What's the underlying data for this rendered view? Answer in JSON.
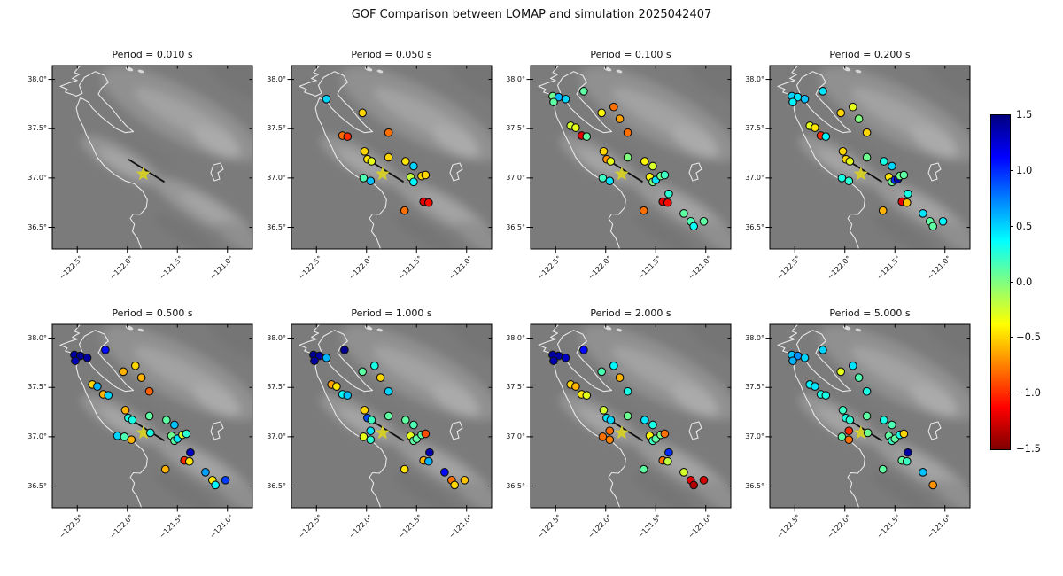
{
  "figure": {
    "title": "GOF Comparison between LOMAP and simulation 2025042407"
  },
  "chart_data": {
    "type": "scatter",
    "subtype": "map-scatter-grid",
    "title": "GOF Comparison between LOMAP and simulation 2025042407",
    "colormap": "jet_r",
    "grid": {
      "rows": 2,
      "cols": 4
    },
    "map_extent": {
      "lon_min": -122.75,
      "lon_max": -120.75,
      "lat_min": 36.28,
      "lat_max": 38.14
    },
    "x_tick_labels": [
      "−122.5°",
      "−122.0°",
      "−121.5°",
      "−121.0°"
    ],
    "x_tick_values": [
      -122.5,
      -122.0,
      -121.5,
      -121.0
    ],
    "y_tick_labels": [
      "38.0°",
      "37.5°",
      "37.0°",
      "36.5°"
    ],
    "y_tick_values": [
      38.0,
      37.5,
      37.0,
      36.5
    ],
    "colorbar": {
      "min": -1.5,
      "max": 1.5,
      "tick_values": [
        1.5,
        1.0,
        0.5,
        0.0,
        -0.5,
        -1.0,
        -1.5
      ],
      "tick_labels": [
        "1.5",
        "1.0",
        "0.5",
        "0.0",
        "−0.5",
        "−1.0",
        "−1.5"
      ]
    },
    "epicenter": {
      "lon": -121.84,
      "lat": 37.04,
      "marker": "star",
      "color": "#d3cd2b"
    },
    "fault_trace": [
      [
        -121.99,
        37.19
      ],
      [
        -121.63,
        36.96
      ]
    ],
    "stations": [
      {
        "id": "SF1",
        "lon": -122.53,
        "lat": 37.83
      },
      {
        "id": "SF2",
        "lon": -122.47,
        "lat": 37.82
      },
      {
        "id": "SF3",
        "lon": -122.4,
        "lat": 37.8
      },
      {
        "id": "SF4",
        "lon": -122.52,
        "lat": 37.77
      },
      {
        "id": "NTH",
        "lon": -122.22,
        "lat": 37.88
      },
      {
        "id": "S06",
        "lon": -121.92,
        "lat": 37.72
      },
      {
        "id": "S07",
        "lon": -122.04,
        "lat": 37.66
      },
      {
        "id": "S08",
        "lon": -121.86,
        "lat": 37.6
      },
      {
        "id": "S09",
        "lon": -122.35,
        "lat": 37.53
      },
      {
        "id": "S10",
        "lon": -122.3,
        "lat": 37.51
      },
      {
        "id": "S11",
        "lon": -122.24,
        "lat": 37.43
      },
      {
        "id": "S12",
        "lon": -122.19,
        "lat": 37.42
      },
      {
        "id": "S13",
        "lon": -121.78,
        "lat": 37.46
      },
      {
        "id": "S15",
        "lon": -122.02,
        "lat": 37.27
      },
      {
        "id": "S16",
        "lon": -121.99,
        "lat": 37.19
      },
      {
        "id": "S17",
        "lon": -121.95,
        "lat": 37.17
      },
      {
        "id": "S18",
        "lon": -121.78,
        "lat": 37.21
      },
      {
        "id": "S19",
        "lon": -121.61,
        "lat": 37.17
      },
      {
        "id": "S20",
        "lon": -121.53,
        "lat": 37.12
      },
      {
        "id": "SW2",
        "lon": -122.1,
        "lat": 37.01
      },
      {
        "id": "S21",
        "lon": -122.03,
        "lat": 37.0
      },
      {
        "id": "S22",
        "lon": -121.96,
        "lat": 36.97
      },
      {
        "id": "SNW",
        "lon": -121.96,
        "lat": 37.06
      },
      {
        "id": "SNE",
        "lon": -121.77,
        "lat": 37.04
      },
      {
        "id": "C1",
        "lon": -121.56,
        "lat": 37.01
      },
      {
        "id": "C2",
        "lon": -121.53,
        "lat": 36.96
      },
      {
        "id": "C3",
        "lon": -121.5,
        "lat": 36.98
      },
      {
        "id": "C4",
        "lon": -121.47,
        "lat": 36.99
      },
      {
        "id": "C5",
        "lon": -121.45,
        "lat": 37.02
      },
      {
        "id": "C6",
        "lon": -121.41,
        "lat": 37.03
      },
      {
        "id": "S28",
        "lon": -121.37,
        "lat": 36.84
      },
      {
        "id": "S29",
        "lon": -121.43,
        "lat": 36.76
      },
      {
        "id": "S30",
        "lon": -121.38,
        "lat": 36.75
      },
      {
        "id": "S31",
        "lon": -121.62,
        "lat": 36.67
      },
      {
        "id": "S32",
        "lon": -121.22,
        "lat": 36.64
      },
      {
        "id": "S33",
        "lon": -121.15,
        "lat": 36.56
      },
      {
        "id": "S34",
        "lon": -121.12,
        "lat": 36.51
      },
      {
        "id": "S35",
        "lon": -121.02,
        "lat": 36.56
      }
    ],
    "panels": [
      {
        "title": "Period = 0.010 s",
        "period_s": 0.01,
        "values": {}
      },
      {
        "title": "Period = 0.050 s",
        "period_s": 0.05,
        "values": {
          "SF3": 0.5,
          "S07": -0.5,
          "S11": -0.8,
          "S12": -1.0,
          "S13": -0.8,
          "S15": -0.5,
          "S16": -0.45,
          "S17": -0.3,
          "S18": -0.5,
          "S19": -0.45,
          "S20": 0.5,
          "S21": 0.15,
          "S22": 0.55,
          "C1": -0.2,
          "C2": 0.4,
          "C5": -0.5,
          "C6": -0.5,
          "S29": -1.2,
          "S30": -1.1,
          "S31": -0.8
        }
      },
      {
        "title": "Period = 0.100 s",
        "period_s": 0.1,
        "values": {
          "SF1": 0.05,
          "SF2": 0.6,
          "SF3": 0.5,
          "SF4": 0.1,
          "NTH": 0.1,
          "S06": -0.8,
          "S07": -0.4,
          "S08": -0.65,
          "S09": -0.25,
          "S10": -0.3,
          "S11": -1.2,
          "S12": 0.1,
          "S13": -0.8,
          "S15": -0.5,
          "S16": -0.7,
          "S17": -0.3,
          "S18": 0.0,
          "S19": -0.4,
          "S20": -0.25,
          "S21": 0.2,
          "S22": 0.45,
          "C1": -0.4,
          "C2": 0.0,
          "C3": 0.45,
          "C5": 0.05,
          "C6": 0.2,
          "S28": 0.25,
          "S29": -1.2,
          "S30": -1.1,
          "S31": -0.8,
          "S32": 0.1,
          "S33": 0.15,
          "S34": 0.35,
          "S35": 0.1
        }
      },
      {
        "title": "Period = 0.200 s",
        "period_s": 0.2,
        "values": {
          "SF1": 0.5,
          "SF2": 0.45,
          "SF3": 0.55,
          "SF4": 0.4,
          "NTH": 0.45,
          "S06": -0.3,
          "S07": -0.5,
          "S08": 0.0,
          "S09": -0.3,
          "S10": -0.45,
          "S11": -1.0,
          "S12": 0.4,
          "S13": -0.5,
          "S15": -0.5,
          "S16": -0.5,
          "S17": -0.3,
          "S18": 0.05,
          "S19": 0.3,
          "S20": 0.5,
          "S21": 0.3,
          "S22": 0.25,
          "C1": -0.45,
          "C2": 0.05,
          "C3": 1.0,
          "C4": 1.35,
          "C5": 0.05,
          "C6": 0.1,
          "S28": 0.3,
          "S29": -1.2,
          "S30": -0.55,
          "S31": -0.6,
          "S32": 0.45,
          "S33": 0.1,
          "S34": 0.1,
          "S35": 0.4
        }
      },
      {
        "title": "Period = 0.500 s",
        "period_s": 0.5,
        "values": {
          "SF1": 1.4,
          "SF2": 1.45,
          "SF3": 1.4,
          "SF4": 1.35,
          "NTH": 1.1,
          "S06": -0.5,
          "S07": -0.6,
          "S08": -0.6,
          "S09": -0.5,
          "S10": 0.6,
          "S11": -0.6,
          "S12": 0.5,
          "S13": -0.85,
          "S15": -0.6,
          "S16": 0.3,
          "S17": 0.3,
          "S18": 0.1,
          "S19": 0.1,
          "S20": 0.55,
          "SW2": 0.5,
          "S21": 0.15,
          "S22": -0.6,
          "SNE": 0.3,
          "C1": 0.05,
          "C2": 0.1,
          "C3": 0.45,
          "C5": -0.25,
          "C6": 0.25,
          "S28": 1.3,
          "S29": -1.0,
          "S30": -0.45,
          "S31": -0.6,
          "S32": 0.65,
          "S33": -0.45,
          "S34": 0.4,
          "S35": 0.95
        }
      },
      {
        "title": "Period = 1.000 s",
        "period_s": 1.0,
        "values": {
          "SF1": 1.45,
          "SF2": 1.4,
          "SF3": 0.6,
          "SF4": 1.4,
          "NTH": 1.45,
          "S06": 0.3,
          "S07": 0.1,
          "S08": -0.5,
          "S09": -0.65,
          "S10": -0.45,
          "S11": 0.4,
          "S12": 0.55,
          "S13": 0.5,
          "S15": -0.5,
          "S16": 0.9,
          "S17": 0.2,
          "S18": 0.1,
          "S19": 0.1,
          "S20": 0.15,
          "S21": -0.3,
          "S22": 0.25,
          "SNW": 0.45,
          "C1": -0.3,
          "C2": 0.1,
          "C3": 0.1,
          "C5": 0.1,
          "C6": -0.9,
          "S28": 1.35,
          "S29": -0.6,
          "S30": 0.6,
          "S31": -0.45,
          "S32": 1.1,
          "S33": -0.8,
          "S34": -0.5,
          "S35": -0.55
        }
      },
      {
        "title": "Period = 2.000 s",
        "period_s": 2.0,
        "values": {
          "SF1": 1.4,
          "SF2": 1.4,
          "SF3": 1.3,
          "SF4": 1.35,
          "NTH": 1.1,
          "S06": 0.4,
          "S07": 0.15,
          "S08": -0.6,
          "S09": -0.5,
          "S10": -0.6,
          "S11": -0.45,
          "S12": -0.3,
          "S13": 0.3,
          "S15": -0.25,
          "S16": 0.45,
          "S17": 0.5,
          "S18": 0.05,
          "S19": 0.45,
          "S20": 0.3,
          "S21": -0.8,
          "S22": -0.75,
          "SNW": -0.8,
          "C1": -0.4,
          "C2": 0.2,
          "C3": 0.1,
          "C5": 0.0,
          "C6": -0.8,
          "S28": 1.0,
          "S29": -0.8,
          "S30": -0.2,
          "S31": 0.1,
          "S32": -0.25,
          "S33": -1.2,
          "S34": -1.35,
          "S35": -1.25
        }
      },
      {
        "title": "Period = 5.000 s",
        "period_s": 5.0,
        "values": {
          "SF1": 0.55,
          "SF2": 0.7,
          "SF3": 0.5,
          "SF4": 0.6,
          "NTH": 0.5,
          "S06": 0.45,
          "S07": -0.3,
          "S08": 0.15,
          "S09": 0.4,
          "S10": 0.45,
          "S11": 0.3,
          "S12": 0.3,
          "S13": 0.3,
          "S15": 0.2,
          "S16": 0.3,
          "S17": 0.25,
          "S18": 0.1,
          "S19": 0.3,
          "S20": 0.15,
          "S21": 0.1,
          "S22": -0.8,
          "SNW": -1.0,
          "SNE": 0.05,
          "C1": 0.1,
          "C2": 0.2,
          "C3": 0.1,
          "C5": 0.3,
          "C6": -0.5,
          "S28": 1.4,
          "S29": 0.1,
          "S30": 0.2,
          "S31": 0.1,
          "S32": 0.55,
          "S34": -0.7
        }
      }
    ]
  }
}
